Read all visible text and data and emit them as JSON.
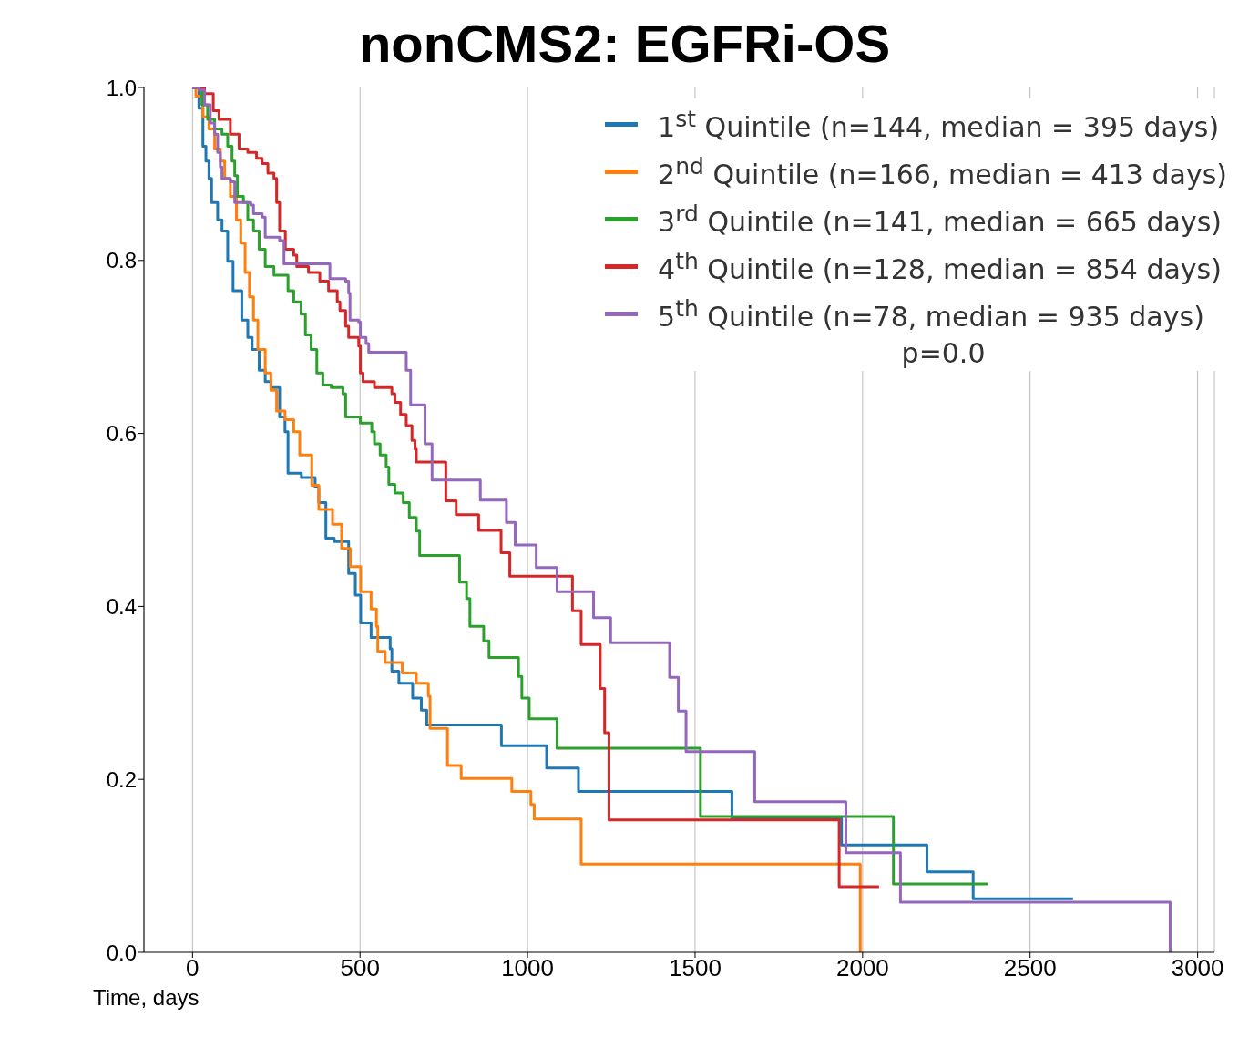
{
  "chart_data": {
    "type": "step",
    "title": "nonCMS2: EGFRi-OS",
    "xlabel": "Time, days",
    "xlim": [
      -145,
      3050
    ],
    "xticks": [
      0,
      500,
      1000,
      1500,
      2000,
      2500,
      3000
    ],
    "ylim": [
      0,
      1
    ],
    "yticks": [
      {
        "value": 0,
        "label": "0.0"
      },
      {
        "value": 0.2,
        "label": "0.2"
      },
      {
        "value": 0.4,
        "label": "0.4"
      },
      {
        "value": 0.6,
        "label": "0.6"
      },
      {
        "value": 0.8,
        "label": "0.8"
      },
      {
        "value": 1,
        "label": "1.0"
      }
    ],
    "grid": "x",
    "legend": "top right",
    "annotations": [
      "p=0.0"
    ],
    "series": [
      {
        "name": "1$^{st}$  Quintile (n=144, median = 395 days)",
        "color": "#1f77b4",
        "x": [
          0,
          19,
          31,
          40,
          49,
          57,
          75,
          88,
          105,
          121,
          147,
          165,
          178,
          199,
          217,
          234,
          260,
          276,
          285,
          325,
          366,
          377,
          398,
          423,
          466,
          486,
          502,
          533,
          590,
          595,
          616,
          657,
          683,
          699,
          922,
          1057,
          1152,
          1610,
          1937,
          2192,
          2330,
          2628
        ],
        "values": [
          1,
          0.976,
          0.932,
          0.915,
          0.895,
          0.867,
          0.847,
          0.834,
          0.799,
          0.765,
          0.731,
          0.711,
          0.697,
          0.673,
          0.66,
          0.653,
          0.619,
          0.602,
          0.554,
          0.549,
          0.538,
          0.52,
          0.479,
          0.475,
          0.438,
          0.413,
          0.381,
          0.364,
          0.351,
          0.325,
          0.311,
          0.294,
          0.28,
          0.263,
          0.239,
          0.213,
          0.186,
          0.155,
          0.124,
          0.093,
          0.062,
          0.062
        ]
      },
      {
        "name": "2$^{nd}$ Quintile (n=166, median = 413 days)",
        "color": "#ff7f0e",
        "x": [
          0,
          10,
          31,
          49,
          66,
          83,
          96,
          113,
          131,
          144,
          157,
          170,
          182,
          195,
          217,
          234,
          251,
          276,
          302,
          320,
          356,
          377,
          418,
          445,
          471,
          502,
          533,
          549,
          553,
          575,
          626,
          668,
          704,
          709,
          761,
          802,
          953,
          1010,
          1020,
          1160,
          1993
        ],
        "values": [
          1,
          0.99,
          0.966,
          0.952,
          0.929,
          0.915,
          0.895,
          0.874,
          0.847,
          0.82,
          0.786,
          0.758,
          0.731,
          0.697,
          0.67,
          0.65,
          0.626,
          0.616,
          0.602,
          0.575,
          0.54,
          0.512,
          0.495,
          0.467,
          0.446,
          0.417,
          0.397,
          0.377,
          0.348,
          0.335,
          0.323,
          0.311,
          0.296,
          0.259,
          0.216,
          0.201,
          0.186,
          0.171,
          0.154,
          0.102,
          0
        ]
      },
      {
        "name": "3$^{rd}$  Quintile (n=141, median = 665 days)",
        "color": "#2ca02c",
        "x": [
          0,
          28,
          45,
          66,
          88,
          105,
          118,
          126,
          134,
          152,
          165,
          182,
          199,
          217,
          243,
          285,
          302,
          324,
          337,
          354,
          371,
          389,
          414,
          449,
          457,
          501,
          535,
          543,
          560,
          578,
          586,
          604,
          629,
          647,
          668,
          678,
          797,
          818,
          828,
          869,
          885,
          973,
          983,
          1005,
          1088,
          1516,
          2092,
          2374
        ],
        "values": [
          1,
          0.98,
          0.963,
          0.952,
          0.946,
          0.932,
          0.915,
          0.898,
          0.874,
          0.867,
          0.847,
          0.834,
          0.813,
          0.793,
          0.783,
          0.765,
          0.752,
          0.738,
          0.714,
          0.697,
          0.67,
          0.656,
          0.653,
          0.646,
          0.619,
          0.612,
          0.602,
          0.588,
          0.575,
          0.561,
          0.541,
          0.531,
          0.52,
          0.503,
          0.487,
          0.459,
          0.428,
          0.409,
          0.377,
          0.36,
          0.341,
          0.319,
          0.294,
          0.27,
          0.236,
          0.157,
          0.079,
          0.079
        ]
      },
      {
        "name": "4$^{th}$  Quintile (n=128, median = 854 days)",
        "color": "#d62728",
        "x": [
          0,
          36,
          62,
          79,
          113,
          139,
          165,
          191,
          208,
          225,
          243,
          251,
          260,
          277,
          302,
          311,
          346,
          380,
          406,
          432,
          440,
          457,
          466,
          496,
          501,
          509,
          543,
          595,
          604,
          621,
          638,
          655,
          664,
          668,
          756,
          787,
          854,
          921,
          947,
          1134,
          1160,
          1217,
          1230,
          1243,
          1930,
          2049
        ],
        "values": [
          1,
          0.993,
          0.973,
          0.963,
          0.946,
          0.929,
          0.925,
          0.918,
          0.912,
          0.901,
          0.895,
          0.867,
          0.834,
          0.813,
          0.806,
          0.793,
          0.786,
          0.776,
          0.765,
          0.752,
          0.742,
          0.724,
          0.711,
          0.701,
          0.67,
          0.66,
          0.653,
          0.646,
          0.636,
          0.622,
          0.609,
          0.592,
          0.582,
          0.567,
          0.522,
          0.506,
          0.488,
          0.462,
          0.435,
          0.395,
          0.356,
          0.305,
          0.254,
          0.153,
          0.076,
          0.076
        ]
      },
      {
        "name": "5$^{th}$  Quintile (n=78, median = 935 days)",
        "color": "#9467bd",
        "x": [
          0,
          19,
          36,
          53,
          66,
          75,
          83,
          88,
          113,
          126,
          174,
          182,
          208,
          217,
          260,
          273,
          410,
          457,
          466,
          470,
          496,
          501,
          518,
          526,
          638,
          651,
          694,
          715,
          859,
          937,
          963,
          1026,
          1088,
          1197,
          1248,
          1424,
          1450,
          1473,
          1678,
          1950,
          2113,
          2918
        ],
        "values": [
          1,
          0.997,
          0.98,
          0.959,
          0.946,
          0.925,
          0.908,
          0.895,
          0.891,
          0.867,
          0.864,
          0.854,
          0.85,
          0.827,
          0.823,
          0.796,
          0.779,
          0.776,
          0.762,
          0.731,
          0.729,
          0.711,
          0.704,
          0.694,
          0.673,
          0.633,
          0.588,
          0.546,
          0.523,
          0.497,
          0.471,
          0.445,
          0.417,
          0.387,
          0.358,
          0.318,
          0.279,
          0.232,
          0.174,
          0.115,
          0.058,
          0
        ]
      }
    ]
  }
}
